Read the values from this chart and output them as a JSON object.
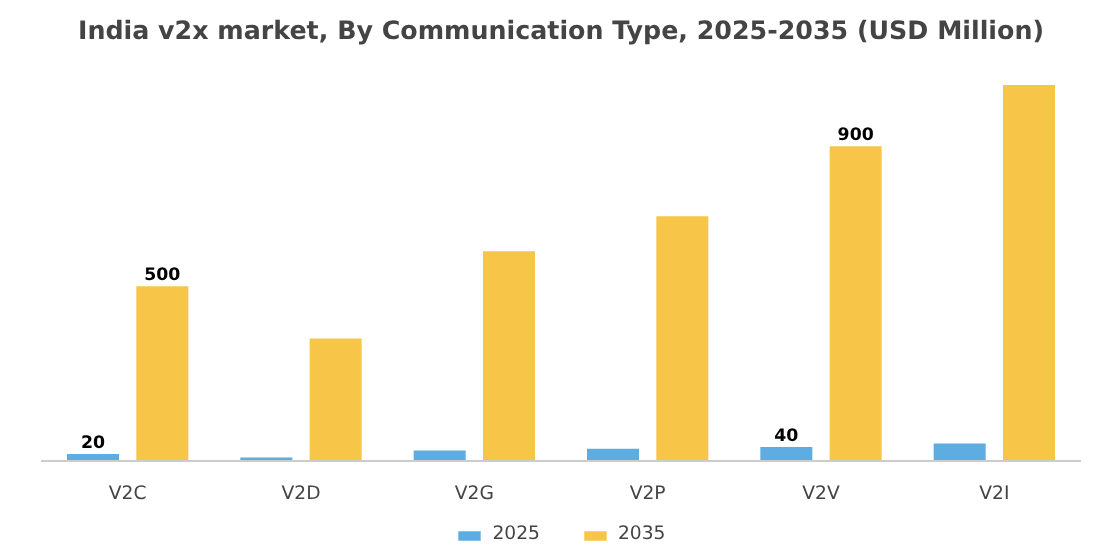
{
  "chart_data": {
    "type": "bar",
    "title": "India v2x market, By Communication Type, 2025-2035 (USD Million)",
    "categories": [
      "V2C",
      "V2D",
      "V2G",
      "V2P",
      "V2V",
      "V2I"
    ],
    "series": [
      {
        "name": "2025",
        "color": "#5dade2",
        "values": [
          20,
          10,
          30,
          35,
          40,
          50
        ],
        "value_labels": [
          "20",
          null,
          null,
          null,
          "40",
          null
        ]
      },
      {
        "name": "2035",
        "color": "#f7c548",
        "values": [
          500,
          350,
          600,
          700,
          900,
          1075
        ],
        "value_labels": [
          "500",
          null,
          null,
          null,
          "900",
          null
        ]
      }
    ],
    "legend": "bottom"
  }
}
